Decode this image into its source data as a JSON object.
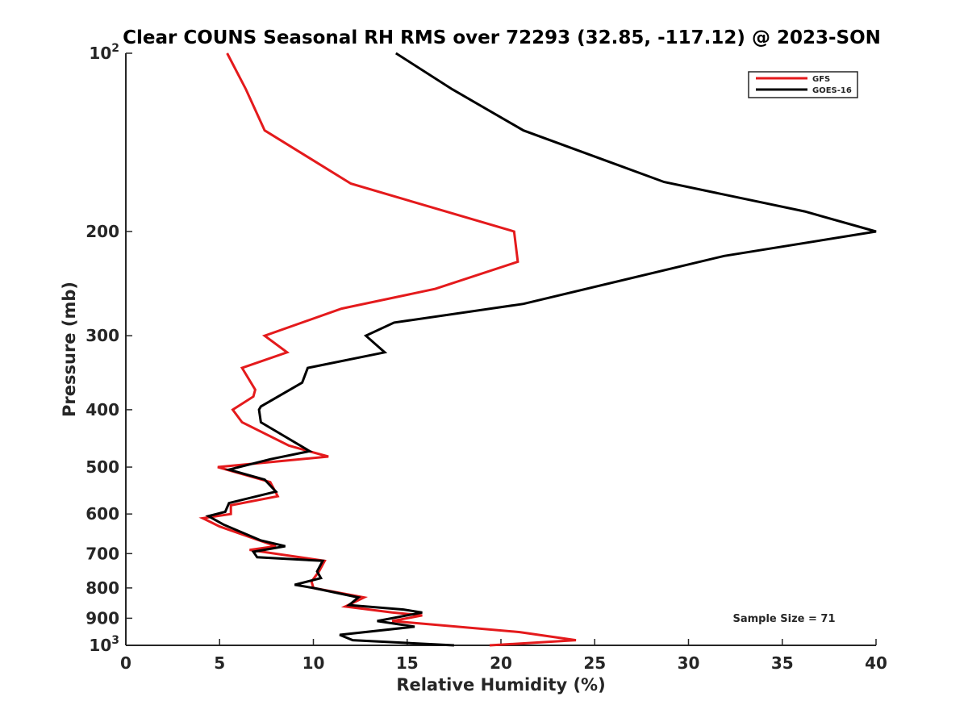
{
  "chart_data": {
    "type": "line",
    "title": "Clear COUNS Seasonal RH RMS over 72293 (32.85, -117.12) @ 2023-SON",
    "xlabel": "Relative Humidity (%)",
    "ylabel": "Pressure (mb)",
    "xlim": [
      0,
      40
    ],
    "ylim": [
      100,
      1000
    ],
    "yscale": "log",
    "y_reversed": true,
    "x_ticks": [
      0,
      5,
      10,
      15,
      20,
      25,
      30,
      35,
      40
    ],
    "x_tick_labels": [
      "0",
      "5",
      "10",
      "15",
      "20",
      "25",
      "30",
      "35",
      "40"
    ],
    "y_ticks": [
      {
        "value": 100,
        "base": "10",
        "exp": "2"
      },
      {
        "value": 200,
        "base": "200",
        "exp": ""
      },
      {
        "value": 300,
        "base": "300",
        "exp": ""
      },
      {
        "value": 400,
        "base": "400",
        "exp": ""
      },
      {
        "value": 500,
        "base": "500",
        "exp": ""
      },
      {
        "value": 600,
        "base": "600",
        "exp": ""
      },
      {
        "value": 700,
        "base": "700",
        "exp": ""
      },
      {
        "value": 800,
        "base": "800",
        "exp": ""
      },
      {
        "value": 900,
        "base": "900",
        "exp": ""
      },
      {
        "value": 1000,
        "base": "10",
        "exp": "3"
      }
    ],
    "legend_position": "top-right",
    "annotation": "Sample Size = 71",
    "series": [
      {
        "name": "GFS",
        "color": "#e41a1c",
        "x": [
          5.4,
          6.4,
          7.4,
          12.0,
          20.7,
          20.9,
          16.5,
          11.5,
          7.4,
          8.6,
          6.2,
          6.9,
          6.8,
          5.7,
          6.2,
          8.7,
          10.8,
          7.8,
          4.9,
          7.7,
          8.1,
          5.6,
          5.6,
          4.1,
          5.0,
          8.0,
          6.6,
          10.6,
          10.3,
          9.9,
          10.0,
          12.7,
          11.7,
          14.2,
          15.8,
          14.2,
          21.0,
          24.0,
          19.4
        ],
        "y": [
          100,
          115,
          135,
          166,
          200,
          225,
          250,
          270,
          300,
          320,
          340,
          370,
          380,
          400,
          420,
          460,
          480,
          490,
          500,
          530,
          560,
          580,
          600,
          610,
          630,
          680,
          690,
          720,
          750,
          780,
          800,
          830,
          860,
          880,
          890,
          910,
          950,
          980,
          1000
        ]
      },
      {
        "name": "GOES-16",
        "color": "#000000",
        "x": [
          14.4,
          17.4,
          21.2,
          28.7,
          36.2,
          40.0,
          31.9,
          21.2,
          14.3,
          12.8,
          13.8,
          9.7,
          9.4,
          7.2,
          7.1,
          7.2,
          9.8,
          7.7,
          5.5,
          7.4,
          8.0,
          5.5,
          5.3,
          4.4,
          5.2,
          7.2,
          8.5,
          6.8,
          7.0,
          10.5,
          10.2,
          10.4,
          9.0,
          10.0,
          12.4,
          11.9,
          14.8,
          15.8,
          13.4,
          15.4,
          11.4,
          12.1,
          17.5
        ],
        "y": [
          100,
          115,
          135,
          165,
          185,
          200,
          220,
          265,
          285,
          300,
          320,
          340,
          360,
          395,
          400,
          420,
          470,
          485,
          505,
          525,
          550,
          575,
          595,
          605,
          625,
          665,
          680,
          695,
          710,
          720,
          750,
          770,
          790,
          800,
          830,
          855,
          870,
          880,
          910,
          930,
          960,
          980,
          1000
        ]
      }
    ]
  }
}
